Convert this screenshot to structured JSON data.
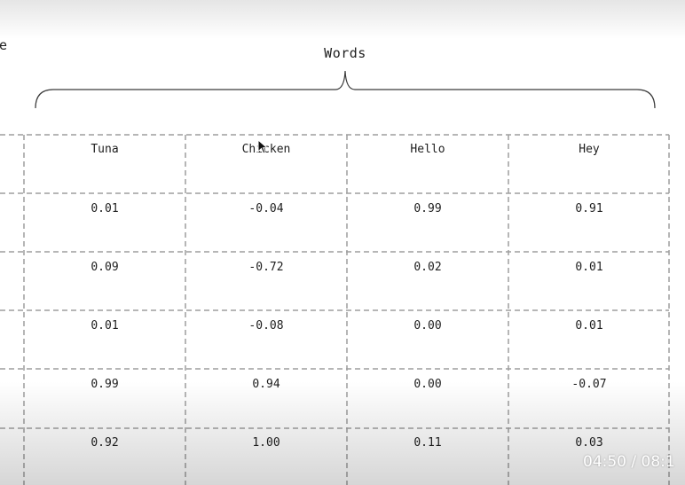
{
  "left_partial_label": "e",
  "group_label": "Words",
  "table": {
    "headers": [
      "Tuna",
      "Chicken",
      "Hello",
      "Hey"
    ],
    "rows": [
      [
        "0.01",
        "-0.04",
        "0.99",
        "0.91"
      ],
      [
        "0.09",
        "-0.72",
        "0.02",
        "0.01"
      ],
      [
        "0.01",
        "-0.08",
        "0.00",
        "0.01"
      ],
      [
        "0.99",
        "0.94",
        "0.00",
        "-0.07"
      ],
      [
        "0.92",
        "1.00",
        "0.11",
        "0.03"
      ]
    ]
  },
  "video": {
    "time_display": "04:50 / 08:1"
  }
}
